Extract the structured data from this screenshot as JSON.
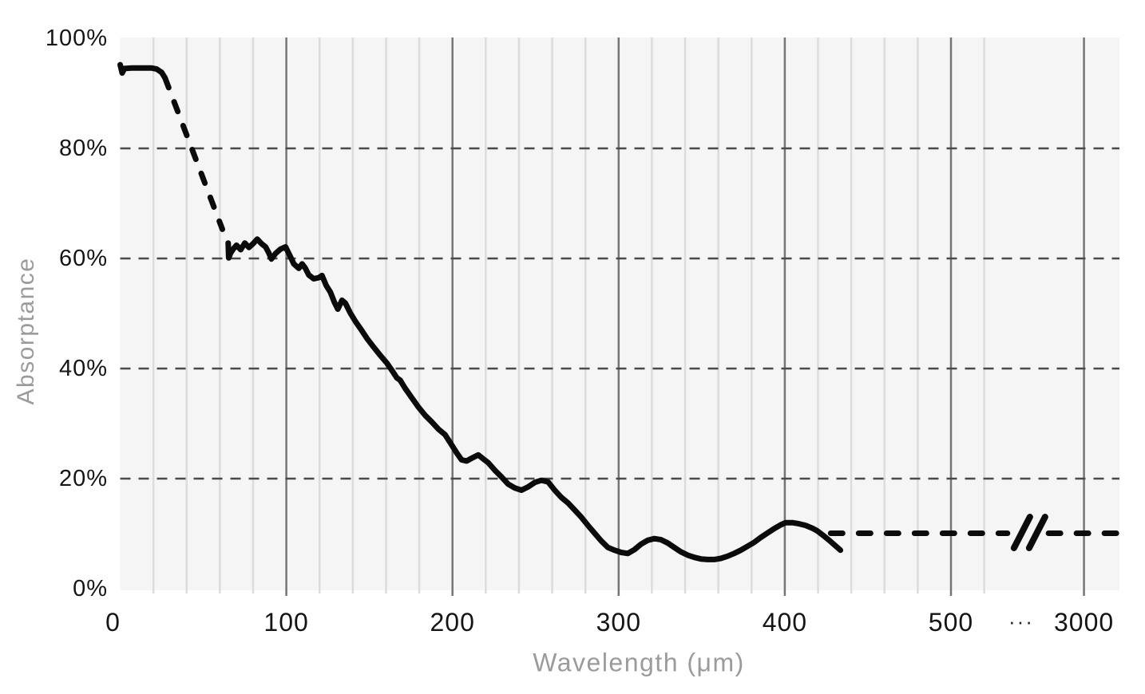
{
  "chart_data": {
    "type": "line",
    "title": "",
    "xlabel": "Wavelength (μm)",
    "ylabel": "Absorptance",
    "x_axis": {
      "unit": "μm",
      "ticks_major": [
        {
          "um": 0,
          "label": "0",
          "dx": -9
        },
        {
          "um": 100,
          "label": "100"
        },
        {
          "um": 200,
          "label": "200"
        },
        {
          "um": 300,
          "label": "300"
        },
        {
          "um": 400,
          "label": "400"
        },
        {
          "um": 500,
          "label": "500"
        }
      ],
      "minor_step_um": 20,
      "minor_max_um": 520,
      "axis_break": {
        "after_um": 520,
        "symbol": "//",
        "symbol_frac": 0.91,
        "ellipsis_text": "···",
        "ellipsis_frac": 0.9017,
        "post_break_tick": {
          "label": "3000",
          "frac": 0.9645
        }
      }
    },
    "y_axis": {
      "range": [
        0,
        100
      ],
      "ticks": [
        {
          "pct": 0,
          "label": "0%"
        },
        {
          "pct": 20,
          "label": "20%"
        },
        {
          "pct": 40,
          "label": "40%"
        },
        {
          "pct": 60,
          "label": "60%"
        },
        {
          "pct": 80,
          "label": "80%"
        },
        {
          "pct": 100,
          "label": "100%"
        }
      ],
      "dashed_gridline_pcts": [
        20,
        40,
        60,
        80
      ]
    },
    "series": [
      {
        "name": "absorptance-solid-start",
        "style": "solid",
        "points": [
          [
            0,
            95.2
          ],
          [
            1.2,
            93.7
          ],
          [
            2.6,
            94.5
          ],
          [
            7,
            94.6
          ],
          [
            13,
            94.6
          ],
          [
            19,
            94.6
          ],
          [
            22,
            94.4
          ],
          [
            25,
            93.8
          ],
          [
            27,
            92.8
          ]
        ]
      },
      {
        "name": "absorptance-dashed-decline",
        "style": "dashed",
        "points": [
          [
            27,
            92.8
          ],
          [
            61.5,
            65.3
          ]
        ]
      },
      {
        "name": "absorptance-main",
        "style": "solid",
        "points": [
          [
            65,
            62.8
          ],
          [
            65.3,
            60.1
          ],
          [
            66.5,
            61.0
          ],
          [
            68,
            61.7
          ],
          [
            70,
            62.4
          ],
          [
            72.5,
            61.6
          ],
          [
            75,
            62.8
          ],
          [
            77.5,
            62.0
          ],
          [
            80,
            62.7
          ],
          [
            82.5,
            63.5
          ],
          [
            85,
            62.7
          ],
          [
            87.5,
            62.1
          ],
          [
            89.5,
            61.0
          ],
          [
            91,
            59.9
          ],
          [
            93.5,
            60.9
          ],
          [
            96.5,
            61.7
          ],
          [
            99.5,
            62.1
          ],
          [
            102,
            60.6
          ],
          [
            104.5,
            59.0
          ],
          [
            107.5,
            58.2
          ],
          [
            109.5,
            59.0
          ],
          [
            111.5,
            58.2
          ],
          [
            113.5,
            57.0
          ],
          [
            116.5,
            56.3
          ],
          [
            119.5,
            56.5
          ],
          [
            121.5,
            56.9
          ],
          [
            124,
            55.1
          ],
          [
            126.5,
            53.9
          ],
          [
            129,
            52.0
          ],
          [
            131,
            50.8
          ],
          [
            133.5,
            52.4
          ],
          [
            135.5,
            51.9
          ],
          [
            138.5,
            50.1
          ],
          [
            141.5,
            48.6
          ],
          [
            144.5,
            47.3
          ],
          [
            148.5,
            45.5
          ],
          [
            152.5,
            43.9
          ],
          [
            156.5,
            42.4
          ],
          [
            160.5,
            41.0
          ],
          [
            163.5,
            39.7
          ],
          [
            166.5,
            38.3
          ],
          [
            168.5,
            37.9
          ],
          [
            171.5,
            36.4
          ],
          [
            175.5,
            34.7
          ],
          [
            179.5,
            33.0
          ],
          [
            183.5,
            31.5
          ],
          [
            187.5,
            30.3
          ],
          [
            191.5,
            29.0
          ],
          [
            195.5,
            28.0
          ],
          [
            198.5,
            26.6
          ],
          [
            202.5,
            24.7
          ],
          [
            205.5,
            23.4
          ],
          [
            208.5,
            23.2
          ],
          [
            211.5,
            23.7
          ],
          [
            215.5,
            24.3
          ],
          [
            218.5,
            23.6
          ],
          [
            221.5,
            22.9
          ],
          [
            225.5,
            21.5
          ],
          [
            229.5,
            20.3
          ],
          [
            233.5,
            19.0
          ],
          [
            237.5,
            18.3
          ],
          [
            241.5,
            17.9
          ],
          [
            245.5,
            18.5
          ],
          [
            249.5,
            19.3
          ],
          [
            253.5,
            19.7
          ],
          [
            257.5,
            19.4
          ],
          [
            261.5,
            17.9
          ],
          [
            265.5,
            16.6
          ],
          [
            269.5,
            15.6
          ],
          [
            273.5,
            14.3
          ],
          [
            277.5,
            13.0
          ],
          [
            281.5,
            11.5
          ],
          [
            285.5,
            10.1
          ],
          [
            289.5,
            8.7
          ],
          [
            293.5,
            7.5
          ],
          [
            297.5,
            7.0
          ],
          [
            301.5,
            6.6
          ],
          [
            305.5,
            6.4
          ],
          [
            309.5,
            7.1
          ],
          [
            313.5,
            8.1
          ],
          [
            317.5,
            8.8
          ],
          [
            321.5,
            9.1
          ],
          [
            325.5,
            8.9
          ],
          [
            329.5,
            8.3
          ],
          [
            333.5,
            7.5
          ],
          [
            337.5,
            6.7
          ],
          [
            341.5,
            6.1
          ],
          [
            345.5,
            5.7
          ],
          [
            349.5,
            5.4
          ],
          [
            353.5,
            5.3
          ],
          [
            357.5,
            5.3
          ],
          [
            361.5,
            5.5
          ],
          [
            365.5,
            5.9
          ],
          [
            369.5,
            6.4
          ],
          [
            373.5,
            7.0
          ],
          [
            377.5,
            7.7
          ],
          [
            381.5,
            8.4
          ],
          [
            385.5,
            9.3
          ],
          [
            389.5,
            10.1
          ],
          [
            393.5,
            10.9
          ],
          [
            397.5,
            11.6
          ],
          [
            400.5,
            12.0
          ],
          [
            404.5,
            12.0
          ],
          [
            408.5,
            11.8
          ],
          [
            412.5,
            11.5
          ],
          [
            416.5,
            11.0
          ],
          [
            419.5,
            10.5
          ],
          [
            423.5,
            9.6
          ],
          [
            427.5,
            8.6
          ],
          [
            430.5,
            7.8
          ],
          [
            433.5,
            7.0
          ]
        ]
      },
      {
        "name": "absorptance-dashed-extension",
        "style": "dashed-horizontal",
        "pct": 10,
        "from_frac": 0.711,
        "to_frac": 1.002,
        "break_gap_frac": [
          0.888,
          0.929
        ]
      }
    ],
    "colors": {
      "line": "#0b0b0b",
      "plot_bg": "#f5f5f5",
      "grid_minor": "#dcdcdc",
      "grid_major": "#757575",
      "grid_dashed": "#4a4a4a",
      "tick_label": "#151515",
      "ellipsis": "#222222",
      "axis_title": "#9b9b9b",
      "page_bg": "#ffffff"
    },
    "layout_hints": {
      "grid_vertical_on": true,
      "grid_horizontal_dashed_on": true,
      "legend": "none"
    }
  }
}
